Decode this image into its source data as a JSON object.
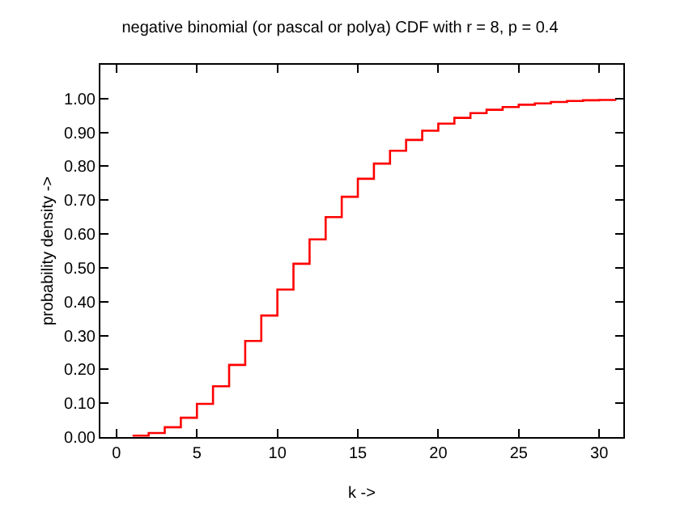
{
  "chart_data": {
    "type": "step",
    "title": "negative binomial (or pascal or polya) CDF with r = 8, p = 0.4",
    "xlabel": "k ->",
    "ylabel": "probability density ->",
    "x": [
      1,
      2,
      3,
      4,
      5,
      6,
      7,
      8,
      9,
      10,
      11,
      12,
      13,
      14,
      15,
      16,
      17,
      18,
      19,
      20,
      21,
      22,
      23,
      24,
      25,
      26,
      27,
      28,
      29,
      30,
      31
    ],
    "series": [
      {
        "color": "#ff0000",
        "values": [
          0.004,
          0.012,
          0.029,
          0.057,
          0.098,
          0.15,
          0.213,
          0.284,
          0.359,
          0.436,
          0.512,
          0.584,
          0.65,
          0.71,
          0.763,
          0.808,
          0.846,
          0.878,
          0.905,
          0.926,
          0.943,
          0.957,
          0.967,
          0.975,
          0.982,
          0.986,
          0.99,
          0.993,
          0.995,
          0.996,
          0.997
        ]
      }
    ],
    "xlim": [
      -1,
      31.5
    ],
    "xticks": [
      0,
      5,
      10,
      15,
      20,
      25,
      30
    ],
    "ylim": [
      0,
      1.1
    ],
    "yticks": [
      {
        "value": 0,
        "label": "0.00"
      },
      {
        "value": 0.1,
        "label": "0.10"
      },
      {
        "value": 0.2,
        "label": "0.20"
      },
      {
        "value": 0.3,
        "label": "0.30"
      },
      {
        "value": 0.4,
        "label": "0.40"
      },
      {
        "value": 0.5,
        "label": "0.50"
      },
      {
        "value": 0.6,
        "label": "0.60"
      },
      {
        "value": 0.7,
        "label": "0.70"
      },
      {
        "value": 0.8,
        "label": "0.80"
      },
      {
        "value": 0.9,
        "label": "0.90"
      },
      {
        "value": 1.0,
        "label": "1.00"
      }
    ],
    "marker": "none",
    "line_style": "solid"
  }
}
